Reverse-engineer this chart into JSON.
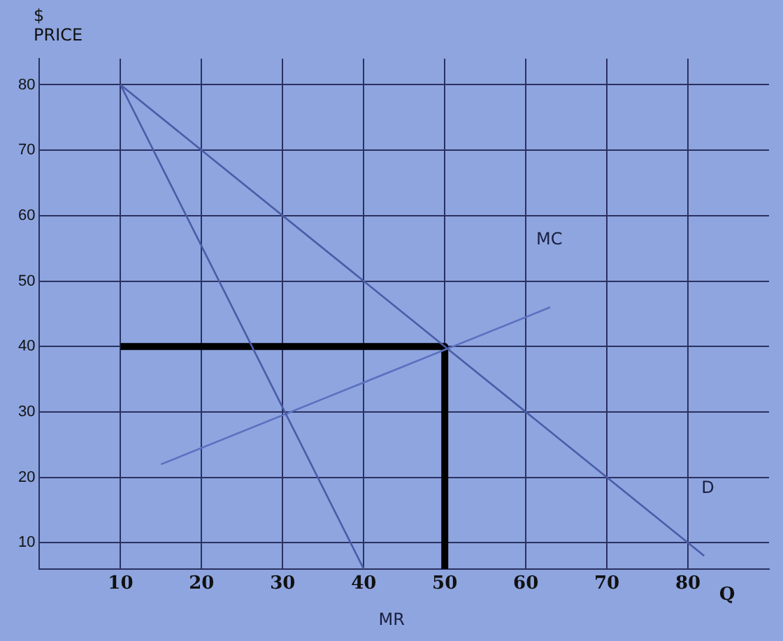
{
  "chart_data": {
    "type": "line",
    "ylabel": "$\nPRICE",
    "xlabel": "Q",
    "xlim": [
      0,
      90
    ],
    "ylim": [
      6,
      84
    ],
    "xticks": [
      10,
      20,
      30,
      40,
      50,
      60,
      70,
      80
    ],
    "yticks": [
      10,
      20,
      30,
      40,
      50,
      60,
      70,
      80
    ],
    "grid": true,
    "legend": false,
    "marker": "none",
    "series": [
      {
        "name": "D",
        "color": "#4a5ca8",
        "x": [
          10,
          82
        ],
        "values": [
          80,
          8
        ]
      },
      {
        "name": "MR",
        "color": "#4a5ca8",
        "x": [
          10,
          40
        ],
        "values": [
          80,
          6
        ]
      },
      {
        "name": "MC",
        "color": "#5a70c0",
        "x": [
          15,
          63
        ],
        "values": [
          22,
          46
        ]
      },
      {
        "color": "#000000",
        "x": [
          10,
          50
        ],
        "values": [
          40,
          40
        ]
      },
      {
        "color": "#000000",
        "x": [
          50,
          50
        ],
        "values": [
          40,
          6
        ]
      }
    ]
  }
}
